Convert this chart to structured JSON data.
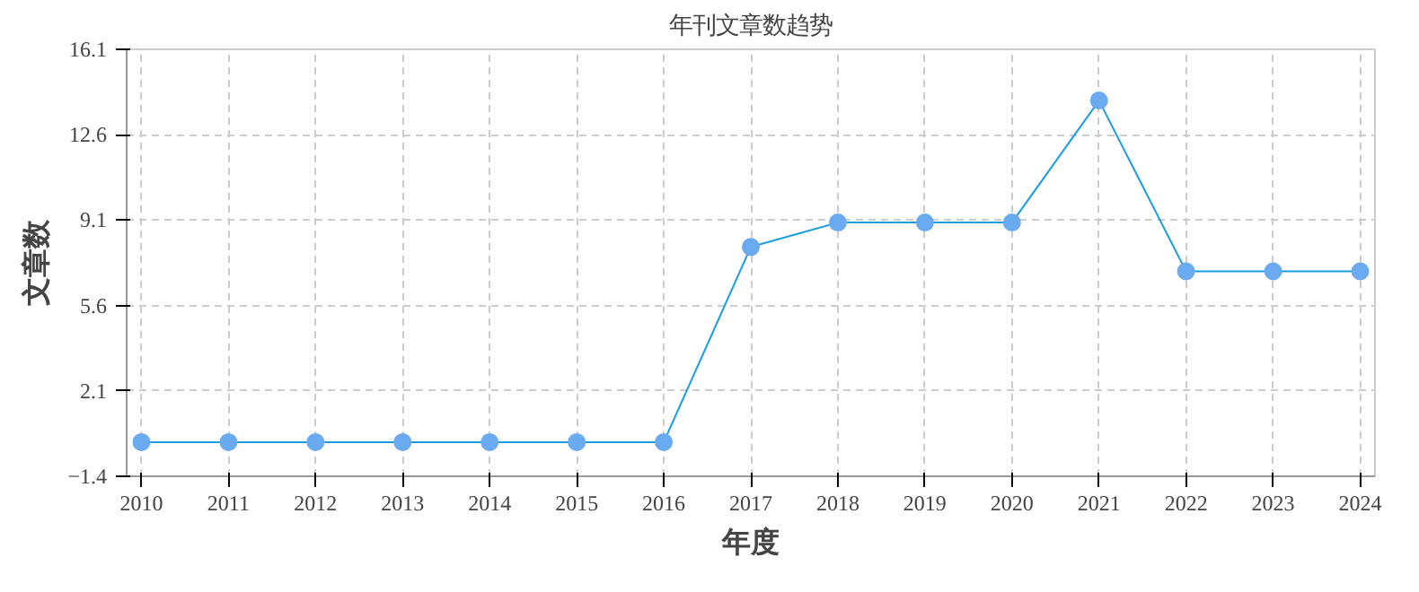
{
  "chart_data": {
    "type": "line",
    "title": "年刊文章数趋势",
    "xlabel": "年度",
    "ylabel": "文章数",
    "categories": [
      "2010",
      "2011",
      "2012",
      "2013",
      "2014",
      "2015",
      "2016",
      "2017",
      "2018",
      "2019",
      "2020",
      "2021",
      "2022",
      "2023",
      "2024"
    ],
    "series": [
      {
        "color": "#1a9de0",
        "values": [
          0,
          0,
          0,
          0,
          0,
          0,
          0,
          8,
          9,
          9,
          9,
          14,
          7,
          7,
          7
        ]
      }
    ],
    "ylim": [
      -1.4,
      16.1
    ],
    "yticks": [
      -1.4,
      2.1,
      5.6,
      9.1,
      12.6,
      16.1
    ],
    "grid": true,
    "marker": "circle",
    "line_style": "solid"
  }
}
